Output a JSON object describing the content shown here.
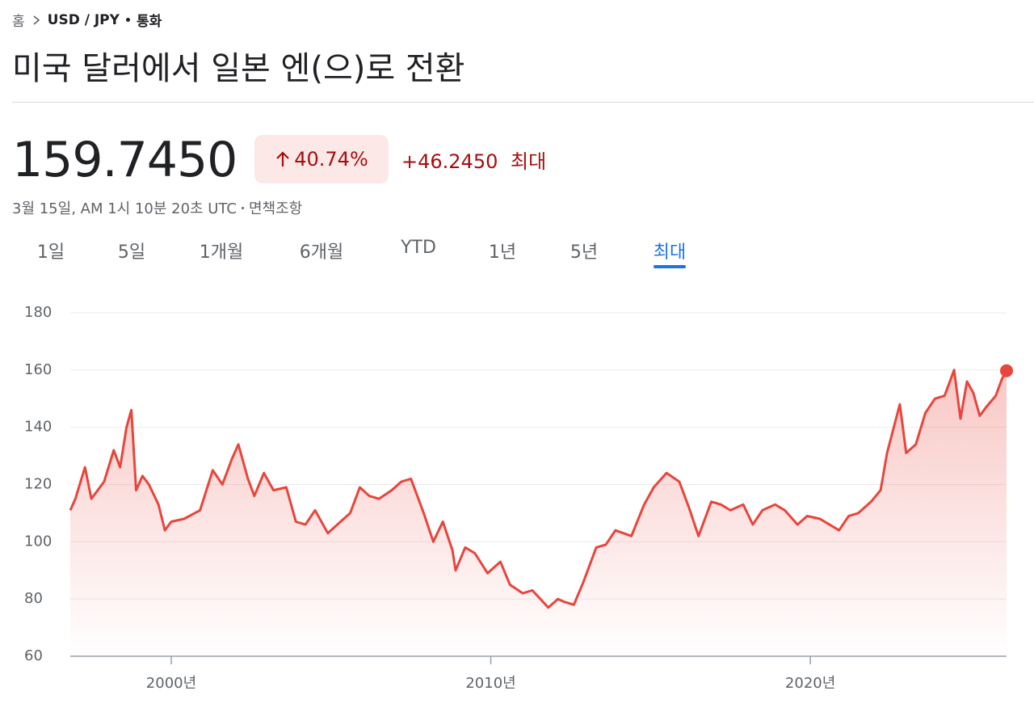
{
  "breadcrumb": {
    "home": "홈",
    "pair": "USD / JPY",
    "category": "통화"
  },
  "title": "미국 달러에서 일본 엔(으)로 전환",
  "quote": {
    "price": "159.7450",
    "percent_change": "40.74%",
    "change": "+46.2450",
    "period": "최대",
    "timestamp": "3월 15일, AM 1시 10분 20초 UTC",
    "disclaimer": "면책조항"
  },
  "tabs": {
    "items": [
      "1일",
      "5일",
      "1개월",
      "6개월",
      "YTD",
      "1년",
      "5년",
      "최대"
    ],
    "selected": 7
  },
  "chart_data": {
    "type": "line",
    "color": "#e8453c",
    "grid": true,
    "xlim": [
      1996.84,
      2026.14
    ],
    "ylim": [
      60,
      180
    ],
    "xticks": [
      {
        "value": 2000,
        "label": "2000년"
      },
      {
        "value": 2010,
        "label": "2010년"
      },
      {
        "value": 2020,
        "label": "2020년"
      }
    ],
    "yticks": [
      60,
      80,
      100,
      120,
      140,
      160,
      180
    ],
    "x": [
      1996.84,
      1997.0,
      1997.3,
      1997.5,
      1997.9,
      1998.2,
      1998.4,
      1998.6,
      1998.75,
      1998.9,
      1999.1,
      1999.3,
      1999.6,
      1999.8,
      2000.0,
      2000.4,
      2000.9,
      2001.3,
      2001.6,
      2001.9,
      2002.1,
      2002.4,
      2002.6,
      2002.9,
      2003.2,
      2003.6,
      2003.9,
      2004.2,
      2004.5,
      2004.9,
      2005.3,
      2005.6,
      2005.9,
      2006.2,
      2006.5,
      2006.9,
      2007.2,
      2007.5,
      2007.9,
      2008.2,
      2008.5,
      2008.8,
      2008.9,
      2009.2,
      2009.5,
      2009.9,
      2010.3,
      2010.6,
      2011.0,
      2011.3,
      2011.8,
      2012.1,
      2012.3,
      2012.6,
      2012.9,
      2013.3,
      2013.6,
      2013.9,
      2014.4,
      2014.8,
      2015.1,
      2015.5,
      2015.9,
      2016.2,
      2016.5,
      2016.9,
      2017.2,
      2017.5,
      2017.9,
      2018.2,
      2018.5,
      2018.9,
      2019.2,
      2019.6,
      2019.9,
      2020.3,
      2020.6,
      2020.9,
      2021.2,
      2021.5,
      2021.9,
      2022.2,
      2022.4,
      2022.8,
      2023.0,
      2023.3,
      2023.6,
      2023.9,
      2024.2,
      2024.5,
      2024.7,
      2024.9,
      2025.1,
      2025.3,
      2025.5,
      2025.8,
      2026.0,
      2026.14
    ],
    "series": [
      {
        "name": "USD / JPY",
        "color": "#e8453c",
        "values": [
          111,
          115,
          126,
          115,
          121,
          132,
          126,
          140,
          146,
          118,
          123,
          120,
          113,
          104,
          107,
          108,
          111,
          125,
          120,
          129,
          134,
          122,
          116,
          124,
          118,
          119,
          107,
          106,
          111,
          103,
          107,
          110,
          119,
          116,
          115,
          118,
          121,
          122,
          110,
          100,
          107,
          97,
          90,
          98,
          96,
          89,
          93,
          85,
          82,
          83,
          77,
          80,
          79,
          78,
          86,
          98,
          99,
          104,
          102,
          113,
          119,
          124,
          121,
          112,
          102,
          114,
          113,
          111,
          113,
          106,
          111,
          113,
          111,
          106,
          109,
          108,
          106,
          104,
          109,
          110,
          114,
          118,
          131,
          148,
          131,
          134,
          145,
          150,
          151,
          160,
          143,
          156,
          152,
          144,
          147,
          151,
          157,
          159.745
        ]
      }
    ]
  }
}
